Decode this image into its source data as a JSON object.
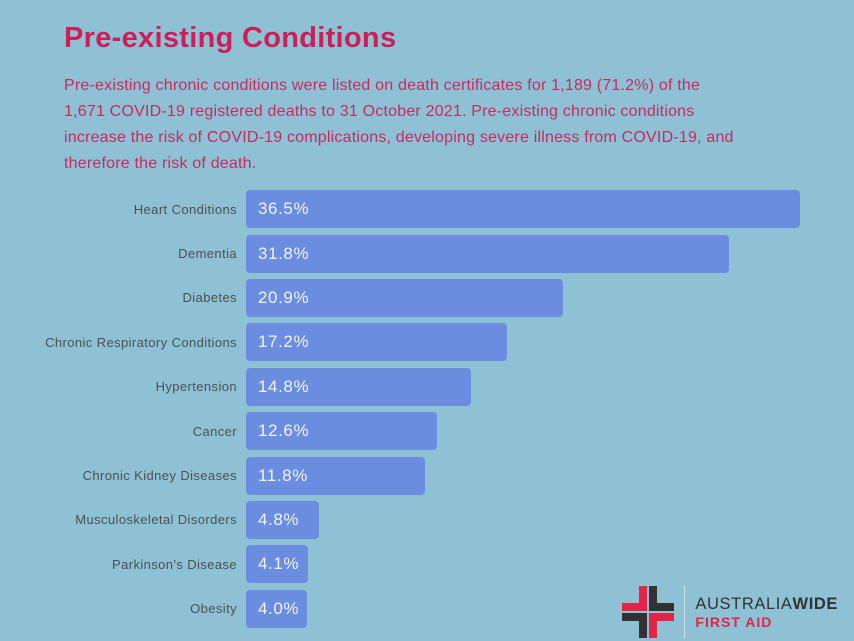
{
  "page": {
    "background": "#8fc1d5"
  },
  "header": {
    "title": "Pre-existing Conditions",
    "subtitle": "Pre-existing chronic conditions were listed on death certificates for 1,189 (71.2%) of the 1,671 COVID-19 registered deaths to 31 October 2021. Pre-existing chronic conditions increase the risk of COVID-19 complications, developing severe illness from COVID-19, and therefore the risk of death.",
    "title_color": "#ce1e5a",
    "subtitle_color": "#c62a61"
  },
  "chart_data": {
    "type": "bar",
    "orientation": "horizontal",
    "title": "Pre-existing Conditions",
    "categories": [
      "Heart Conditions",
      "Dementia",
      "Diabetes",
      "Chronic Respiratory Conditions",
      "Hypertension",
      "Cancer",
      "Chronic Kidney Diseases",
      "Musculoskeletal Disorders",
      "Parkinson's Disease",
      "Obesity"
    ],
    "values": [
      36.5,
      31.8,
      20.9,
      17.2,
      14.8,
      12.6,
      11.8,
      4.8,
      4.1,
      4.0
    ],
    "value_labels": [
      "36.5%",
      "31.8%",
      "20.9%",
      "17.2%",
      "14.8%",
      "12.6%",
      "11.8%",
      "4.8%",
      "4.1%",
      "4.0%"
    ],
    "xlabel": "",
    "ylabel": "",
    "xlim": [
      0,
      36.5
    ],
    "grid": false,
    "legend": false,
    "bar_color": "#6b8de0",
    "label_color": "#4d4f52",
    "value_text_color": "#eef4f9"
  },
  "logo": {
    "brand_part1": "AUSTRALIA",
    "brand_part2": "WIDE",
    "tagline": "FIRST AID",
    "red": "#e52347",
    "dark": "#323234"
  }
}
